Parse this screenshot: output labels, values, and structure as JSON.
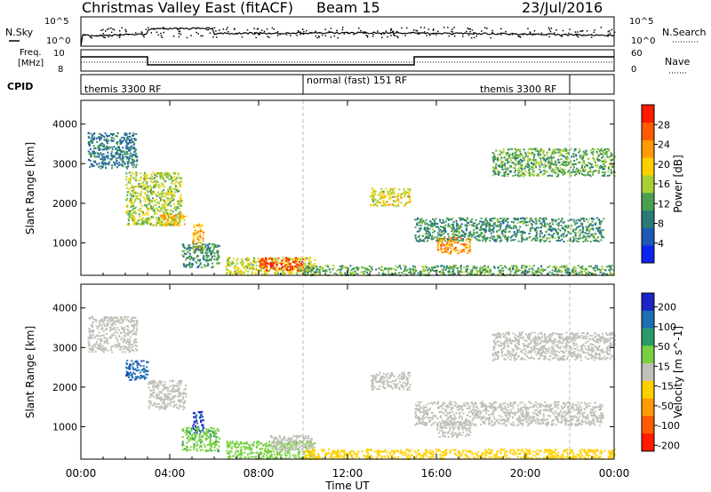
{
  "header": {
    "station": "Christmas Valley East (fitACF)",
    "beam": "Beam 15",
    "date": "23/Jul/2016"
  },
  "panels": {
    "nsky": {
      "left_label": "N.Sky",
      "left_ticks": [
        "10^5",
        "10^0"
      ],
      "right_ticks": [
        "10^5",
        "10^0"
      ],
      "right_label": "N.Search"
    },
    "freq": {
      "left_label_1": "Freq.",
      "left_label_2": "[MHz]",
      "left_ticks": [
        "10",
        "8"
      ],
      "right_ticks": [
        "60",
        "0"
      ],
      "right_label": "Nave"
    },
    "cpid": {
      "label": "CPID",
      "segments": [
        "themis 3300 RF",
        "normal (fast) 151 RF",
        "themis 3300 RF"
      ]
    }
  },
  "colors": {
    "power_scale": [
      "#0a24f0",
      "#1d58b4",
      "#2a7a7a",
      "#4aa050",
      "#a8d030",
      "#ffd000",
      "#ff9a00",
      "#ff5a00",
      "#ff1a00"
    ],
    "velocity_scale": [
      "#1c24c8",
      "#1d6fb0",
      "#2a9a6a",
      "#78d040",
      "#c0c0b8",
      "#ffd000",
      "#ff9a00",
      "#ff5a00",
      "#ff1a00"
    ]
  },
  "chart_data": [
    {
      "type": "heatmap",
      "title": "",
      "xlabel": "Time UT",
      "ylabel": "Slant Range [km]",
      "x_ticks": [
        "00:00",
        "04:00",
        "08:00",
        "12:00",
        "16:00",
        "20:00",
        "00:00"
      ],
      "y_ticks": [
        "1000",
        "2000",
        "3000",
        "4000"
      ],
      "xlim_hours": [
        0,
        24
      ],
      "ylim_km": [
        180,
        4600
      ],
      "colorbar": {
        "label": "Power [dB]",
        "ticks": [
          "4",
          "8",
          "12",
          "16",
          "20",
          "24",
          "28"
        ],
        "range": [
          0,
          30
        ]
      },
      "echo_regions": [
        {
          "t0": 0.3,
          "t1": 2.5,
          "r0": 2900,
          "r1": 3800,
          "level": 8
        },
        {
          "t0": 2.0,
          "t1": 4.5,
          "r0": 1450,
          "r1": 2800,
          "level": 15
        },
        {
          "t0": 3.5,
          "t1": 4.7,
          "r0": 1450,
          "r1": 1750,
          "level": 20
        },
        {
          "t0": 5.0,
          "t1": 5.5,
          "r0": 800,
          "r1": 1500,
          "level": 20
        },
        {
          "t0": 4.5,
          "t1": 6.2,
          "r0": 400,
          "r1": 1000,
          "level": 10
        },
        {
          "t0": 6.5,
          "t1": 10.5,
          "r0": 200,
          "r1": 650,
          "level": 16
        },
        {
          "t0": 8.0,
          "t1": 10.0,
          "r0": 300,
          "r1": 650,
          "level": 26
        },
        {
          "t0": 13.0,
          "t1": 14.8,
          "r0": 1950,
          "r1": 2400,
          "level": 17
        },
        {
          "t0": 15.0,
          "t1": 23.5,
          "r0": 1050,
          "r1": 1650,
          "level": 10
        },
        {
          "t0": 16.0,
          "t1": 17.5,
          "r0": 750,
          "r1": 1150,
          "level": 22
        },
        {
          "t0": 18.5,
          "t1": 24.0,
          "r0": 2700,
          "r1": 3400,
          "level": 12
        },
        {
          "t0": 10.0,
          "t1": 24.0,
          "r0": 200,
          "r1": 450,
          "level": 12
        }
      ]
    },
    {
      "type": "heatmap",
      "title": "",
      "xlabel": "Time UT",
      "ylabel": "Slant Range [km]",
      "x_ticks": [
        "00:00",
        "04:00",
        "08:00",
        "12:00",
        "16:00",
        "20:00",
        "00:00"
      ],
      "y_ticks": [
        "1000",
        "2000",
        "3000",
        "4000"
      ],
      "xlim_hours": [
        0,
        24
      ],
      "ylim_km": [
        180,
        4600
      ],
      "colorbar": {
        "label": "Velocity [m s^-1]",
        "ticks": [
          "200",
          "100",
          "50",
          "15",
          "-15",
          "-50",
          "-100",
          "-200"
        ],
        "range": [
          -250,
          250
        ]
      },
      "echo_regions": [
        {
          "t0": 0.3,
          "t1": 2.5,
          "r0": 2900,
          "r1": 3800,
          "level": 0
        },
        {
          "t0": 2.0,
          "t1": 3.0,
          "r0": 2200,
          "r1": 2700,
          "level": 180
        },
        {
          "t0": 3.0,
          "t1": 4.7,
          "r0": 1450,
          "r1": 2200,
          "level": 0
        },
        {
          "t0": 5.0,
          "t1": 5.5,
          "r0": 800,
          "r1": 1400,
          "level": 200
        },
        {
          "t0": 4.5,
          "t1": 6.2,
          "r0": 400,
          "r1": 1000,
          "level": 70
        },
        {
          "t0": 6.5,
          "t1": 10.5,
          "r0": 200,
          "r1": 650,
          "level": 60
        },
        {
          "t0": 8.5,
          "t1": 10.5,
          "r0": 400,
          "r1": 800,
          "level": 0
        },
        {
          "t0": 13.0,
          "t1": 14.8,
          "r0": 1950,
          "r1": 2400,
          "level": 0
        },
        {
          "t0": 15.0,
          "t1": 23.5,
          "r0": 1050,
          "r1": 1650,
          "level": 0
        },
        {
          "t0": 16.0,
          "t1": 17.5,
          "r0": 750,
          "r1": 1150,
          "level": 0
        },
        {
          "t0": 18.5,
          "t1": 24.0,
          "r0": 2700,
          "r1": 3400,
          "level": 0
        },
        {
          "t0": 10.0,
          "t1": 24.0,
          "r0": 200,
          "r1": 450,
          "level": -60
        }
      ]
    }
  ]
}
